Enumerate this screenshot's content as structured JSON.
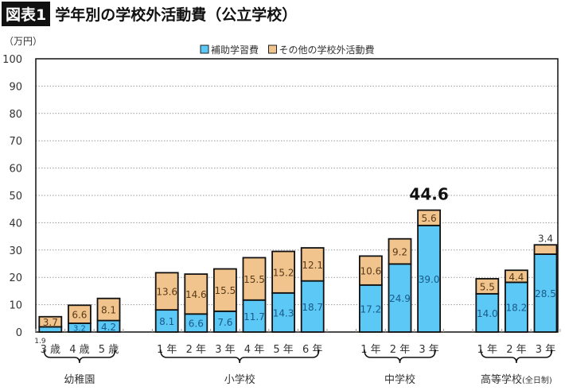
{
  "header": {
    "figure_label": "図表1",
    "title": "学年別の学校外活動費（公立学校）"
  },
  "chart_data": {
    "type": "bar",
    "stacked": true,
    "ylabel": "（万円）",
    "ylim": [
      0,
      100
    ],
    "yticks": [
      0,
      10,
      20,
      30,
      40,
      50,
      60,
      70,
      80,
      90,
      100
    ],
    "grid": "horizontal-dotted",
    "legend_position": "top-center",
    "categories": [
      "3 歳",
      "4 歳",
      "5 歳",
      "1 年",
      "2 年",
      "3 年",
      "4 年",
      "5 年",
      "6 年",
      "1 年",
      "2 年",
      "3 年",
      "1 年",
      "2 年",
      "3 年"
    ],
    "slots": [
      0,
      1,
      2,
      4,
      5,
      6,
      7,
      8,
      9,
      11,
      12,
      13,
      15,
      16,
      17
    ],
    "groups": [
      {
        "label": "幼稚園",
        "from": 0,
        "to": 2
      },
      {
        "label": "小学校",
        "from": 3,
        "to": 8
      },
      {
        "label": "中学校",
        "from": 9,
        "to": 11
      },
      {
        "label": "高等学校",
        "sub": "(全日制)",
        "from": 12,
        "to": 14
      }
    ],
    "series": [
      {
        "name": "補助学習費",
        "color": "#5bc8f5",
        "values": [
          1.9,
          3.2,
          4.2,
          8.1,
          6.6,
          7.6,
          11.7,
          14.3,
          18.7,
          17.2,
          24.9,
          39.0,
          14.0,
          18.2,
          28.5
        ],
        "labels": [
          "1.9",
          "3.2",
          "4.2",
          "8.1",
          "6.6",
          "7.6",
          "11.7",
          "14.3",
          "18.7",
          "17.2",
          "24.9",
          "39.0",
          "14.0",
          "18.2",
          "28.5"
        ]
      },
      {
        "name": "その他の学校外活動費",
        "color": "#f0c48c",
        "values": [
          3.7,
          6.6,
          8.1,
          13.6,
          14.6,
          15.5,
          15.5,
          15.2,
          12.1,
          10.6,
          9.2,
          5.6,
          5.5,
          4.4,
          3.4
        ],
        "labels": [
          "3.7",
          "6.6",
          "8.1",
          "13.6",
          "14.6",
          "15.5",
          "15.5",
          "15.2",
          "12.1",
          "10.6",
          "9.2",
          "5.6",
          "5.5",
          "4.4",
          "3.4"
        ]
      }
    ],
    "annotation": {
      "text": "44.6",
      "category_index": 11
    }
  }
}
